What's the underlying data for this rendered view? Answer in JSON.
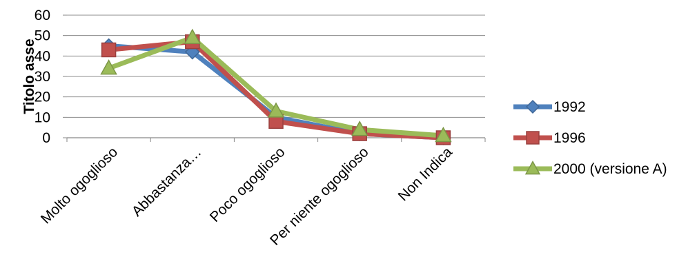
{
  "chart_data": {
    "type": "line",
    "ylabel": "Titolo asse",
    "xlabel": "",
    "title": "",
    "ylim": [
      0,
      60
    ],
    "yticks": [
      "0",
      "10",
      "20",
      "30",
      "40",
      "50",
      "60"
    ],
    "grid": true,
    "legend_position": "right",
    "categories": [
      "Molto ogoglioso",
      "Abbastanza…",
      "Poco ogoglioso",
      "Per niente ogoglioso",
      "Non Indica"
    ],
    "series": [
      {
        "name": "1992",
        "values": [
          45,
          42,
          10,
          2,
          0
        ],
        "color": "#4f81bd",
        "marker": "diamond"
      },
      {
        "name": "1996",
        "values": [
          43,
          47,
          8,
          2,
          0
        ],
        "color": "#c0504d",
        "marker": "square"
      },
      {
        "name": "2000 (versione A)",
        "values": [
          34,
          49,
          13,
          4,
          1
        ],
        "color": "#9bbb59",
        "marker": "triangle"
      }
    ]
  }
}
